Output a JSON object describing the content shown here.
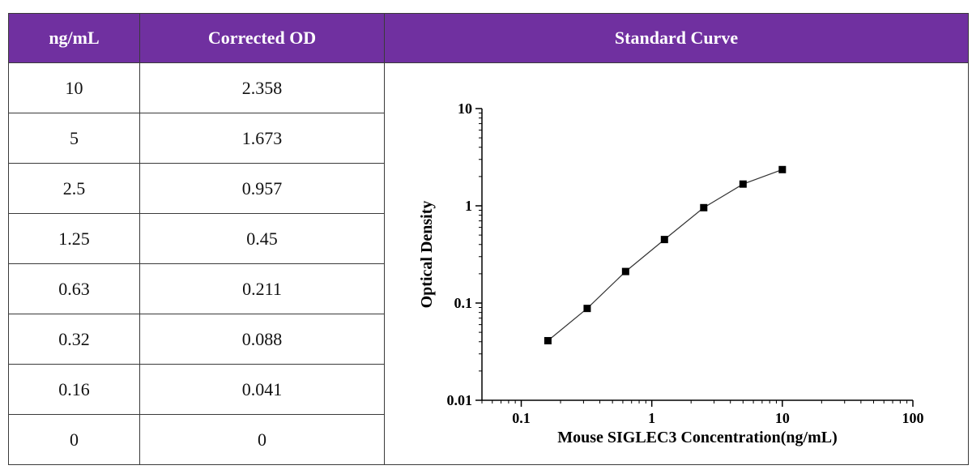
{
  "table": {
    "headers": {
      "conc": "ng/mL",
      "od": "Corrected OD",
      "curve": "Standard Curve"
    },
    "rows": [
      {
        "conc": "10",
        "od": "2.358"
      },
      {
        "conc": "5",
        "od": "1.673"
      },
      {
        "conc": "2.5",
        "od": "0.957"
      },
      {
        "conc": "1.25",
        "od": "0.45"
      },
      {
        "conc": "0.63",
        "od": "0.211"
      },
      {
        "conc": "0.32",
        "od": "0.088"
      },
      {
        "conc": "0.16",
        "od": "0.041"
      },
      {
        "conc": "0",
        "od": "0"
      }
    ]
  },
  "chart_data": {
    "type": "line",
    "title": "",
    "xlabel": "Mouse SIGLEC3 Concentration(ng/mL)",
    "ylabel": "Optical Density",
    "x_scale": "log",
    "y_scale": "log",
    "xlim": [
      0.05,
      100
    ],
    "ylim": [
      0.01,
      10
    ],
    "x_ticks": [
      0.1,
      1,
      10,
      100
    ],
    "x_tick_labels": [
      "0.1",
      "1",
      "10",
      "100"
    ],
    "y_ticks": [
      0.01,
      0.1,
      1,
      10
    ],
    "y_tick_labels": [
      "0.01",
      "0.1",
      "1",
      "10"
    ],
    "grid": false,
    "marker": "square",
    "color": "#000000",
    "series": [
      {
        "x": [
          0.16,
          0.32,
          0.63,
          1.25,
          2.5,
          5,
          10
        ],
        "y": [
          0.041,
          0.088,
          0.211,
          0.45,
          0.957,
          1.673,
          2.358
        ]
      }
    ]
  }
}
